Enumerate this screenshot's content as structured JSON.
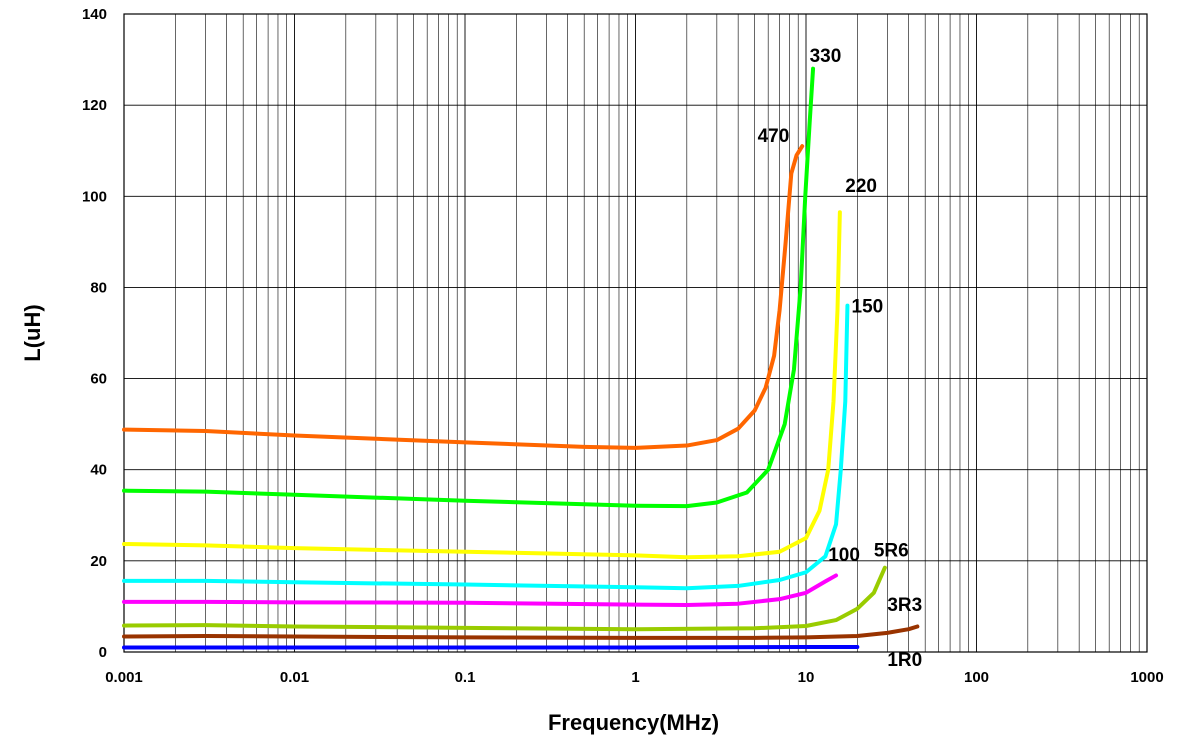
{
  "chart_data": {
    "type": "line",
    "xlabel": "Frequency(MHz)",
    "ylabel": "L(uH)",
    "x_scale": "log",
    "xlim": [
      0.001,
      1000
    ],
    "ylim": [
      0,
      140
    ],
    "x_ticks": [
      {
        "value": 0.001,
        "label": "0.001"
      },
      {
        "value": 0.01,
        "label": "0.01"
      },
      {
        "value": 0.1,
        "label": "0.1"
      },
      {
        "value": 1,
        "label": "1"
      },
      {
        "value": 10,
        "label": "10"
      },
      {
        "value": 100,
        "label": "100"
      },
      {
        "value": 1000,
        "label": "1000"
      }
    ],
    "y_ticks": [
      {
        "value": 0,
        "label": "0"
      },
      {
        "value": 20,
        "label": "20"
      },
      {
        "value": 40,
        "label": "40"
      },
      {
        "value": 60,
        "label": "60"
      },
      {
        "value": 80,
        "label": "80"
      },
      {
        "value": 100,
        "label": "100"
      },
      {
        "value": 120,
        "label": "120"
      },
      {
        "value": 140,
        "label": "140"
      }
    ],
    "grid": true,
    "legend": "none (inline labels)",
    "series": [
      {
        "name": "1R0",
        "color": "#0000ff",
        "label_at": [
          30,
          -1.5
        ],
        "points": [
          [
            0.001,
            1.0
          ],
          [
            0.01,
            1.0
          ],
          [
            0.1,
            1.0
          ],
          [
            1,
            1.0
          ],
          [
            10,
            1.1
          ],
          [
            20,
            1.1
          ]
        ]
      },
      {
        "name": "3R3",
        "color": "#993300",
        "label_at": [
          30,
          10.5
        ],
        "points": [
          [
            0.001,
            3.4
          ],
          [
            0.003,
            3.5
          ],
          [
            0.01,
            3.4
          ],
          [
            0.1,
            3.2
          ],
          [
            1,
            3.1
          ],
          [
            5,
            3.1
          ],
          [
            10,
            3.2
          ],
          [
            20,
            3.5
          ],
          [
            30,
            4.2
          ],
          [
            40,
            5.0
          ],
          [
            45,
            5.6
          ]
        ]
      },
      {
        "name": "5R6",
        "color": "#99cc00",
        "label_at": [
          25,
          22.5
        ],
        "points": [
          [
            0.001,
            5.8
          ],
          [
            0.003,
            5.9
          ],
          [
            0.01,
            5.6
          ],
          [
            0.1,
            5.3
          ],
          [
            1,
            5.0
          ],
          [
            5,
            5.2
          ],
          [
            10,
            5.7
          ],
          [
            15,
            7.0
          ],
          [
            20,
            9.5
          ],
          [
            25,
            13.0
          ],
          [
            29,
            18.5
          ]
        ]
      },
      {
        "name": "100",
        "color": "#ff00ff",
        "label_at": [
          13.5,
          21.5
        ],
        "points": [
          [
            0.001,
            11.0
          ],
          [
            0.003,
            11.0
          ],
          [
            0.01,
            10.9
          ],
          [
            0.1,
            10.8
          ],
          [
            1,
            10.4
          ],
          [
            2,
            10.3
          ],
          [
            4,
            10.6
          ],
          [
            7,
            11.6
          ],
          [
            10,
            13.0
          ],
          [
            13,
            15.5
          ],
          [
            15,
            16.8
          ]
        ]
      },
      {
        "name": "150",
        "color": "#00ffff",
        "label_at": [
          18.5,
          76
        ],
        "points": [
          [
            0.001,
            15.6
          ],
          [
            0.003,
            15.6
          ],
          [
            0.01,
            15.3
          ],
          [
            0.1,
            14.8
          ],
          [
            1,
            14.2
          ],
          [
            2,
            14.0
          ],
          [
            4,
            14.5
          ],
          [
            7,
            15.8
          ],
          [
            10,
            17.5
          ],
          [
            13,
            21.0
          ],
          [
            15,
            28.0
          ],
          [
            16,
            40.0
          ],
          [
            17,
            55.0
          ],
          [
            17.5,
            76.0
          ]
        ]
      },
      {
        "name": "220",
        "color": "#ffff00",
        "label_at": [
          17,
          102.5
        ],
        "points": [
          [
            0.001,
            23.7
          ],
          [
            0.003,
            23.4
          ],
          [
            0.01,
            22.8
          ],
          [
            0.1,
            22.0
          ],
          [
            1,
            21.2
          ],
          [
            2,
            20.8
          ],
          [
            4,
            21.0
          ],
          [
            7,
            22.0
          ],
          [
            10,
            25.0
          ],
          [
            12,
            31.0
          ],
          [
            13.5,
            40.0
          ],
          [
            14.5,
            55.0
          ],
          [
            15.3,
            75.0
          ],
          [
            15.8,
            96.5
          ]
        ]
      },
      {
        "name": "330",
        "color": "#00ff00",
        "label_at": [
          10.5,
          131
        ],
        "points": [
          [
            0.001,
            35.4
          ],
          [
            0.003,
            35.2
          ],
          [
            0.01,
            34.5
          ],
          [
            0.1,
            33.2
          ],
          [
            1,
            32.1
          ],
          [
            2,
            32.0
          ],
          [
            3,
            32.8
          ],
          [
            4.5,
            35.0
          ],
          [
            6,
            40.0
          ],
          [
            7.5,
            50.0
          ],
          [
            8.5,
            62.0
          ],
          [
            9.3,
            80.0
          ],
          [
            9.9,
            100.0
          ],
          [
            10.5,
            116.0
          ],
          [
            11,
            128.0
          ]
        ]
      },
      {
        "name": "470",
        "color": "#ff6600",
        "label_at": [
          5.2,
          113.5
        ],
        "points": [
          [
            0.001,
            48.8
          ],
          [
            0.003,
            48.5
          ],
          [
            0.01,
            47.5
          ],
          [
            0.1,
            46.0
          ],
          [
            0.5,
            45.0
          ],
          [
            1,
            44.8
          ],
          [
            2,
            45.3
          ],
          [
            3,
            46.5
          ],
          [
            4,
            49.0
          ],
          [
            5,
            53.0
          ],
          [
            5.8,
            58.0
          ],
          [
            6.5,
            65.0
          ],
          [
            7,
            75.0
          ],
          [
            7.6,
            90.0
          ],
          [
            8.2,
            105.0
          ],
          [
            8.8,
            109.0
          ],
          [
            9.5,
            111.0
          ]
        ]
      }
    ]
  }
}
